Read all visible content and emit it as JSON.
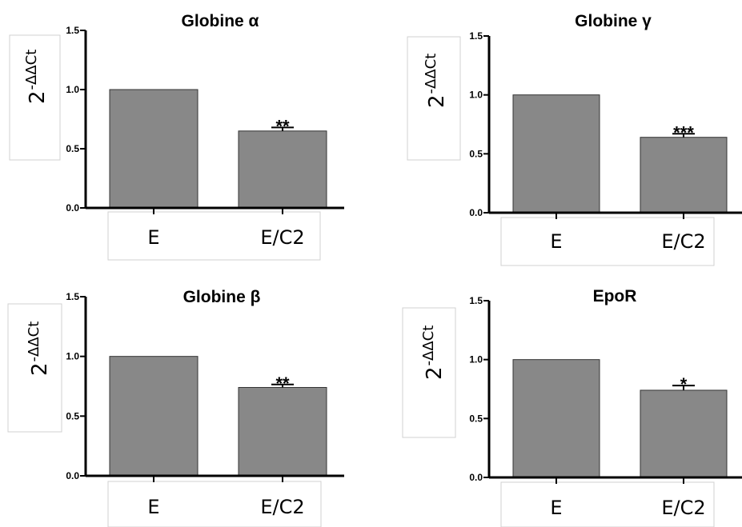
{
  "chart_data": [
    {
      "type": "bar",
      "title": "Globine α",
      "ylabel_base": "2",
      "ylabel_sup": "-ΔΔCt",
      "categories": [
        "E",
        "E/C2"
      ],
      "values": [
        1.0,
        0.65
      ],
      "errors": [
        0,
        0.03
      ],
      "significance": [
        "",
        "**"
      ],
      "ylim": [
        0,
        1.5
      ],
      "yticks": [
        "0.0",
        "0.5",
        "1.0",
        "1.5"
      ],
      "bar_color": "#888888",
      "grid": false
    },
    {
      "type": "bar",
      "title": "Globine γ",
      "ylabel_base": "2",
      "ylabel_sup": "-ΔΔCt",
      "categories": [
        "E",
        "E/C2"
      ],
      "values": [
        1.0,
        0.64
      ],
      "errors": [
        0,
        0.03
      ],
      "significance": [
        "",
        "***"
      ],
      "ylim": [
        0,
        1.5
      ],
      "yticks": [
        "0.0",
        "0.5",
        "1.0",
        "1.5"
      ],
      "bar_color": "#888888",
      "grid": false
    },
    {
      "type": "bar",
      "title": "Globine β",
      "ylabel_base": "2",
      "ylabel_sup": "-ΔΔCt",
      "categories": [
        "E",
        "E/C2"
      ],
      "values": [
        1.0,
        0.74
      ],
      "errors": [
        0,
        0.025
      ],
      "significance": [
        "",
        "**"
      ],
      "ylim": [
        0,
        1.5
      ],
      "yticks": [
        "0.0",
        "0.5",
        "1.0",
        "1.5"
      ],
      "bar_color": "#888888",
      "grid": false
    },
    {
      "type": "bar",
      "title": "EpoR",
      "ylabel_base": "2",
      "ylabel_sup": "-ΔΔCt",
      "categories": [
        "E",
        "E/C2"
      ],
      "values": [
        1.0,
        0.74
      ],
      "errors": [
        0,
        0.04
      ],
      "significance": [
        "",
        "*"
      ],
      "ylim": [
        0,
        1.5
      ],
      "yticks": [
        "0.0",
        "0.5",
        "1.0",
        "1.5"
      ],
      "bar_color": "#888888",
      "grid": false
    }
  ]
}
